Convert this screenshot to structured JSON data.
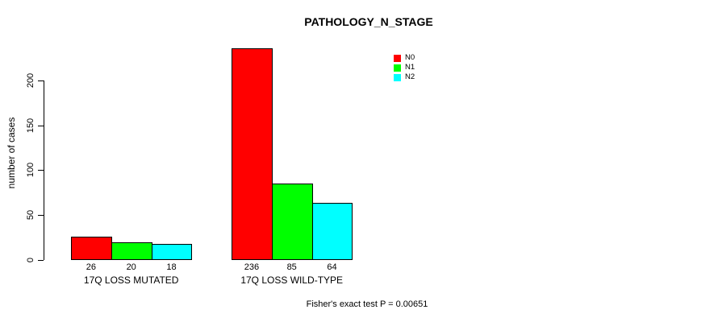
{
  "chart_data": {
    "type": "bar",
    "title": "PATHOLOGY_N_STAGE",
    "ylabel": "number of cases",
    "xlabel": "",
    "categories": [
      "17Q LOSS MUTATED",
      "17Q LOSS WILD-TYPE"
    ],
    "series": [
      {
        "name": "N0",
        "color": "#FF0000",
        "values": [
          26,
          236
        ]
      },
      {
        "name": "N1",
        "color": "#00FF00",
        "values": [
          20,
          85
        ]
      },
      {
        "name": "N2",
        "color": "#00FFFF",
        "values": [
          18,
          64
        ]
      }
    ],
    "y_ticks": [
      0,
      50,
      100,
      150,
      200
    ],
    "ylim": [
      0,
      240
    ],
    "grid": false,
    "legend_position": "top-right",
    "value_labels_shown": true,
    "annotation": "Fisher's exact test P = 0.00651"
  }
}
